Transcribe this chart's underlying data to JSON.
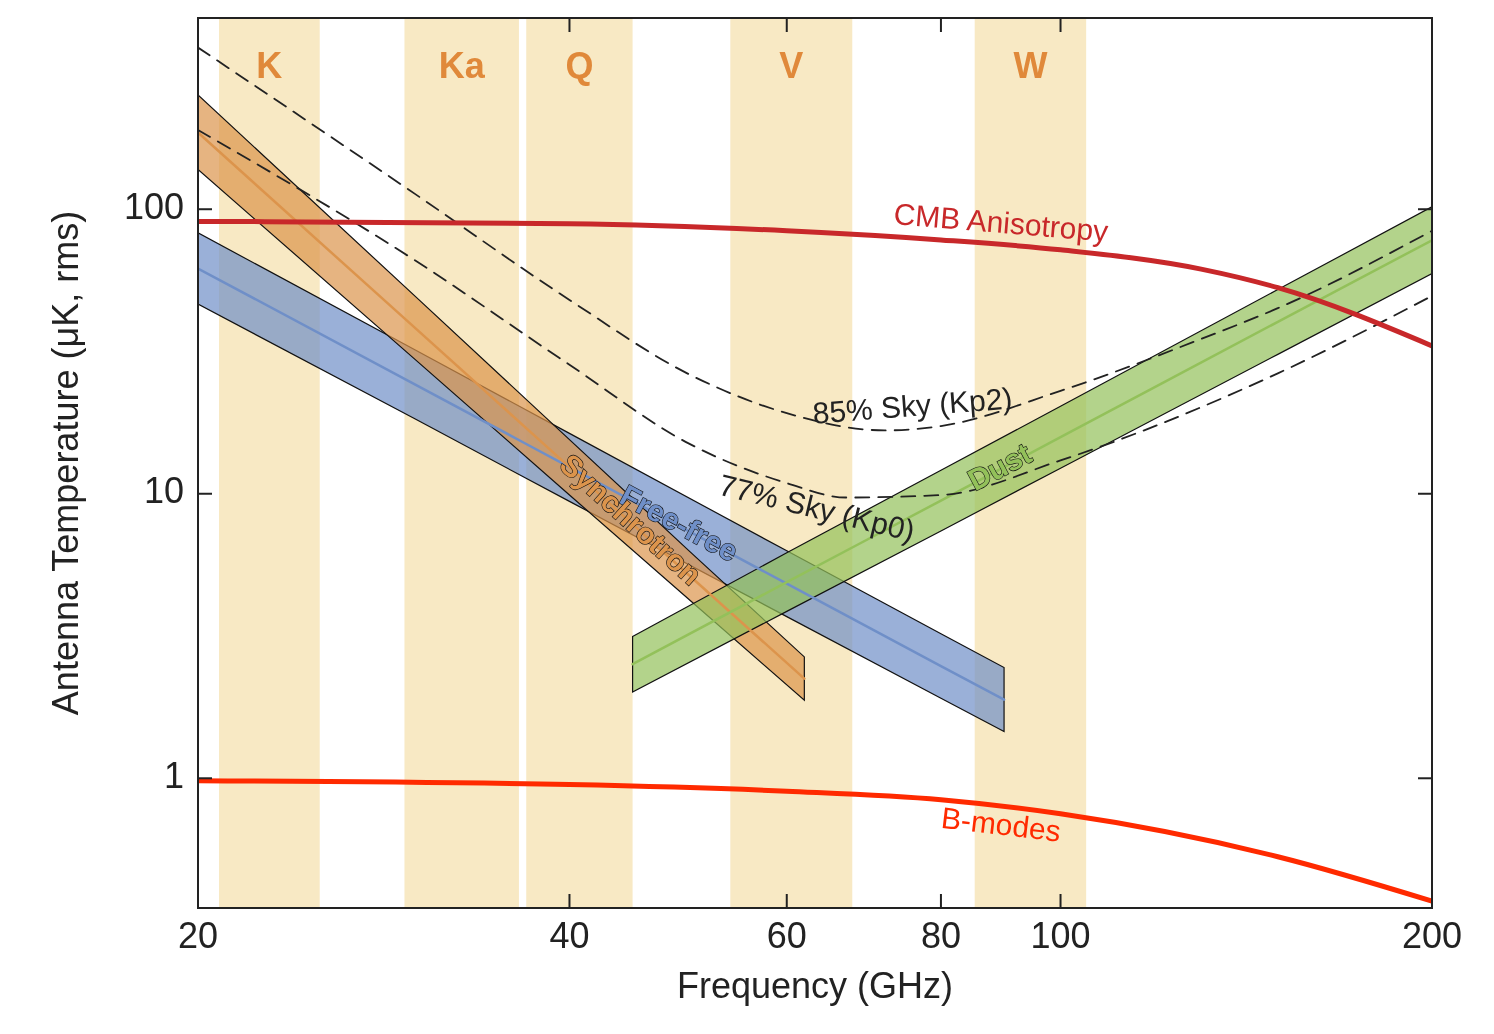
{
  "chart_data": {
    "type": "line",
    "xlabel": "Frequency (GHz)",
    "ylabel": "Antenna Temperature (μK, rms)",
    "log": "xy",
    "xlim": [
      20,
      200
    ],
    "ylim": [
      0.35,
      470
    ],
    "xticks": [
      20,
      40,
      60,
      80,
      100,
      200
    ],
    "yticks": [
      1,
      10,
      100
    ],
    "bands": [
      {
        "axis": "x",
        "from": 20.8,
        "to": 25.1,
        "label": "K",
        "color": "#f8e9c4"
      },
      {
        "axis": "x",
        "from": 29.4,
        "to": 36.4,
        "label": "Ka",
        "color": "#f8e9c4"
      },
      {
        "axis": "x",
        "from": 36.9,
        "to": 45,
        "label": "Q",
        "color": "#f8e9c4"
      },
      {
        "axis": "x",
        "from": 54,
        "to": 67.8,
        "label": "V",
        "color": "#f8e9c4"
      },
      {
        "axis": "x",
        "from": 85.2,
        "to": 104.9,
        "label": "W",
        "color": "#f8e9c4"
      }
    ],
    "series": [
      {
        "name": "Free-free",
        "color": "#6f8fc8",
        "x": [
          20,
          30,
          40,
          60,
          80,
          90
        ],
        "values": [
          61.9,
          24.2,
          12.4,
          4.83,
          2.48,
          1.89
        ],
        "lower": [
          46.4,
          18.3,
          9.4,
          3.7,
          1.91,
          1.46
        ],
        "upper": [
          82.6,
          32,
          16.3,
          6.3,
          3.22,
          2.45
        ]
      },
      {
        "name": "Synchrotron",
        "color": "#dc944c",
        "x": [
          20,
          30,
          40,
          50,
          62
        ],
        "values": [
          186,
          38.2,
          12.4,
          5.17,
          2.24
        ],
        "lower": [
          138,
          29.6,
          9.9,
          4.25,
          1.88
        ],
        "upper": [
          252,
          49.4,
          15.5,
          6.3,
          2.67
        ]
      },
      {
        "name": "Dust",
        "color": "#93c15a",
        "x": [
          45,
          60,
          80,
          100,
          150,
          200
        ],
        "values": [
          2.52,
          4.89,
          9.46,
          15.8,
          40.2,
          77.8
        ],
        "lower": [
          2.01,
          3.86,
          7.4,
          12.3,
          30.9,
          59.4
        ],
        "upper": [
          3.15,
          6.2,
          12.1,
          20.3,
          52.2,
          102
        ]
      },
      {
        "name": "85% Sky (Kp2)",
        "line_style": "dashed",
        "color": "#222222",
        "x": [
          20,
          30,
          40,
          50,
          60,
          72,
          80,
          100,
          130,
          150,
          200
        ],
        "values": [
          370,
          113,
          48,
          26.3,
          19.2,
          16.7,
          17.3,
          23,
          35,
          44.9,
          84
        ]
      },
      {
        "name": "77% Sky (Kp0)",
        "line_style": "dashed",
        "color": "#222222",
        "x": [
          20,
          30,
          40,
          50,
          60,
          67,
          80,
          100,
          150,
          200
        ],
        "values": [
          190,
          66,
          28.4,
          15,
          10.9,
          9.7,
          9.9,
          13.1,
          26.5,
          49.6
        ]
      },
      {
        "name": "CMB Anisotropy",
        "line_style": "solid",
        "color": "#c8282a",
        "x": [
          20,
          40,
          60,
          80,
          100,
          130,
          150,
          200
        ],
        "values": [
          90.6,
          89,
          84,
          78,
          72,
          61.6,
          53,
          33.1
        ]
      },
      {
        "name": "B-modes",
        "line_style": "solid",
        "color": "#ff2a00",
        "x": [
          20,
          40,
          60,
          80,
          100,
          150,
          200
        ],
        "values": [
          0.98,
          0.95,
          0.9,
          0.84,
          0.75,
          0.53,
          0.37
        ]
      }
    ]
  }
}
